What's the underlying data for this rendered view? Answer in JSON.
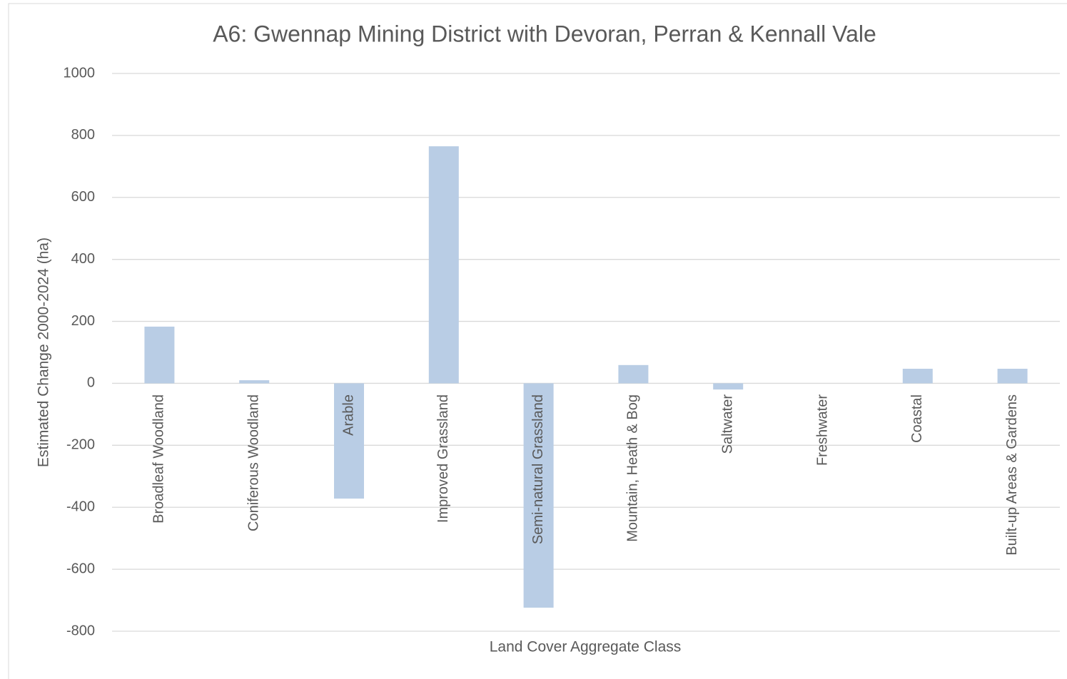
{
  "chart_data": {
    "type": "bar",
    "title": "A6: Gwennap Mining District with Devoran, Perran & Kennall Vale",
    "x_label": "Land Cover Aggregate Class",
    "y_label": "Estimated Change 2000-2024 (ha)",
    "categories": [
      "Broadleaf Woodland",
      "Coniferous Woodland",
      "Arable",
      "Improved Grassland",
      "Semi-natural Grassland",
      "Mountain, Heath & Bog",
      "Saltwater",
      "Freshwater",
      "Coastal",
      "Built-up Areas & Gardens"
    ],
    "values": [
      183,
      10,
      -372,
      765,
      -724,
      59,
      -20,
      0,
      47,
      47
    ],
    "color": "#b9cde5",
    "ylim": [
      -800,
      1000
    ],
    "yticks": [
      -800,
      -600,
      -400,
      -200,
      0,
      200,
      400,
      600,
      800,
      1000
    ],
    "grid": true
  }
}
